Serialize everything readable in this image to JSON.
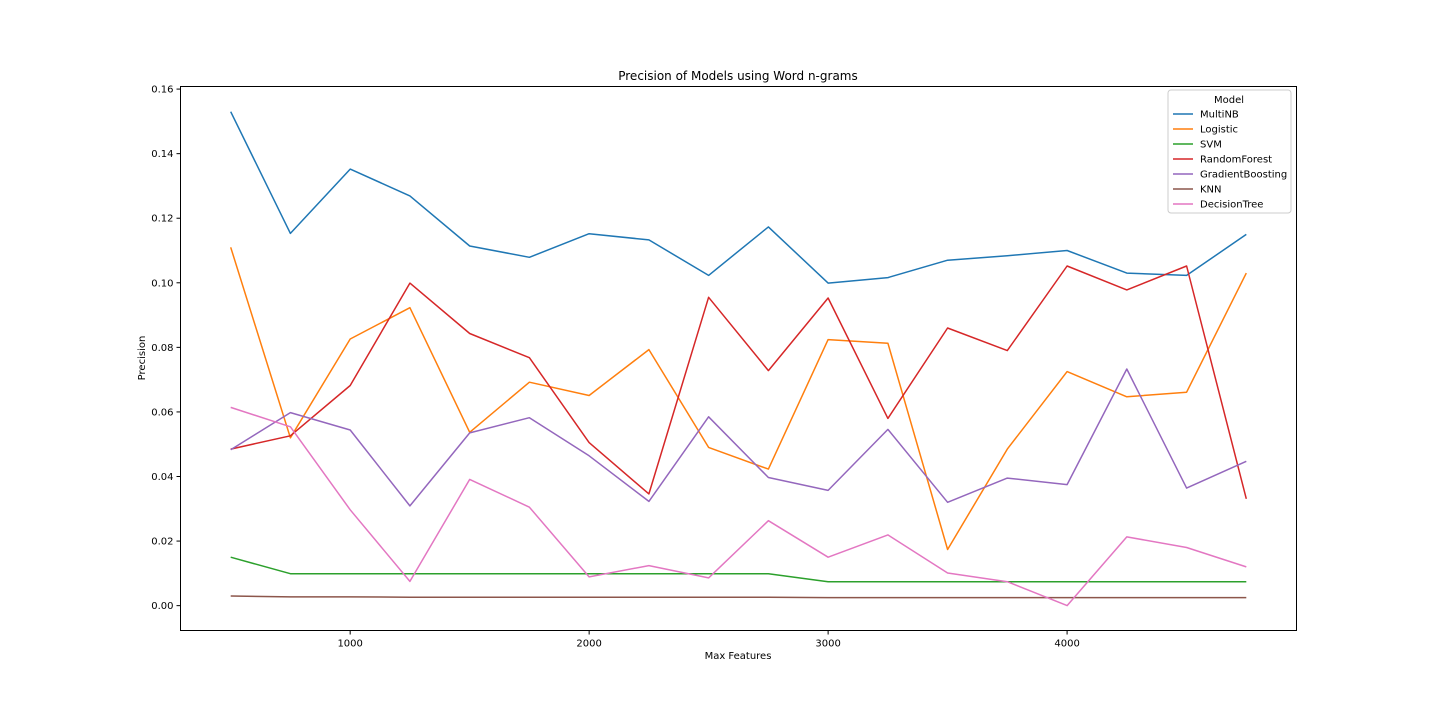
{
  "chart_data": {
    "type": "line",
    "title": "Precision of Models using Word n-grams",
    "xlabel": "Max Features",
    "ylabel": "Precision",
    "xlim": [
      290,
      4960
    ],
    "ylim": [
      -0.0077,
      0.1608
    ],
    "x_ticks": [
      1000,
      2000,
      3000,
      4000
    ],
    "y_ticks": [
      0.0,
      0.02,
      0.04,
      0.06,
      0.08,
      0.1,
      0.12,
      0.14,
      0.16
    ],
    "x_tick_labels": [
      "1000",
      "2000",
      "3000",
      "4000"
    ],
    "y_tick_labels": [
      "0.00",
      "0.02",
      "0.04",
      "0.06",
      "0.08",
      "0.10",
      "0.12",
      "0.14",
      "0.16"
    ],
    "grid": false,
    "legend": {
      "title": "Model",
      "position": "top-right"
    },
    "x": [
      500,
      750,
      1000,
      1250,
      1500,
      1750,
      2000,
      2250,
      2500,
      2750,
      3000,
      3250,
      3500,
      3750,
      4000,
      4250,
      4500,
      4750
    ],
    "series": [
      {
        "name": "MultiNB",
        "color": "#1f77b4",
        "values": [
          0.153,
          0.1153,
          0.1352,
          0.1269,
          0.1114,
          0.1079,
          0.1152,
          0.1133,
          0.1023,
          0.1173,
          0.0999,
          0.1016,
          0.107,
          0.1084,
          0.11,
          0.103,
          0.1023,
          0.115
        ]
      },
      {
        "name": "Logistic",
        "color": "#ff7f0e",
        "values": [
          0.111,
          0.052,
          0.0826,
          0.0923,
          0.0537,
          0.0692,
          0.0651,
          0.0793,
          0.049,
          0.0423,
          0.0824,
          0.0813,
          0.0174,
          0.0485,
          0.0725,
          0.0647,
          0.0661,
          0.103
        ]
      },
      {
        "name": "SVM",
        "color": "#2ca02c",
        "values": [
          0.015,
          0.0099,
          0.0099,
          0.0099,
          0.0099,
          0.0099,
          0.0099,
          0.0099,
          0.0099,
          0.0099,
          0.0074,
          0.0074,
          0.0074,
          0.0074,
          0.0074,
          0.0074,
          0.0074,
          0.0074
        ]
      },
      {
        "name": "RandomForest",
        "color": "#d62728",
        "values": [
          0.0485,
          0.0526,
          0.0682,
          0.0999,
          0.0843,
          0.0768,
          0.0505,
          0.0346,
          0.0955,
          0.0728,
          0.0953,
          0.058,
          0.086,
          0.079,
          0.1052,
          0.0978,
          0.1052,
          0.0331
        ]
      },
      {
        "name": "GradientBoosting",
        "color": "#9467bd",
        "values": [
          0.0483,
          0.0598,
          0.0544,
          0.0309,
          0.0535,
          0.0582,
          0.0464,
          0.0323,
          0.0585,
          0.0397,
          0.0357,
          0.0546,
          0.032,
          0.0395,
          0.0375,
          0.0733,
          0.0364,
          0.0447
        ]
      },
      {
        "name": "KNN",
        "color": "#8c564b",
        "values": [
          0.003,
          0.0027,
          0.0027,
          0.0026,
          0.0026,
          0.0026,
          0.0026,
          0.0026,
          0.0026,
          0.0026,
          0.0025,
          0.0025,
          0.0025,
          0.0025,
          0.0025,
          0.0025,
          0.0025,
          0.0025
        ]
      },
      {
        "name": "DecisionTree",
        "color": "#e377c2",
        "values": [
          0.0614,
          0.0554,
          0.0297,
          0.0075,
          0.0391,
          0.0305,
          0.0089,
          0.0124,
          0.0086,
          0.0263,
          0.015,
          0.0219,
          0.0101,
          0.0074,
          0.0,
          0.0213,
          0.018,
          0.012
        ]
      }
    ]
  }
}
